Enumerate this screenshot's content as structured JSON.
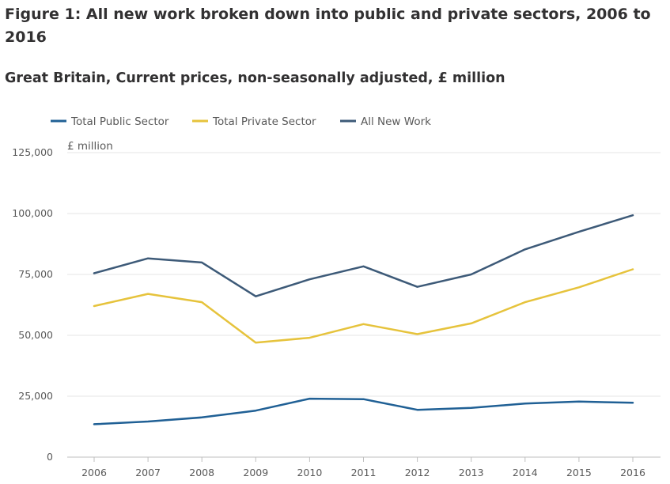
{
  "chart_data": {
    "type": "line",
    "title": "Figure 1: All new work broken down into public and private sectors, 2006 to 2016",
    "subtitle": "Great Britain, Current prices, non-seasonally adjusted, £ million",
    "ylabel": "£ million",
    "xlabel": "",
    "categories": [
      "2006",
      "2007",
      "2008",
      "2009",
      "2010",
      "2011",
      "2012",
      "2013",
      "2014",
      "2015",
      "2016"
    ],
    "ylim": [
      0,
      125000
    ],
    "yticks": [
      0,
      25000,
      50000,
      75000,
      100000,
      125000
    ],
    "ytick_labels": [
      "0",
      "25,000",
      "50,000",
      "75,000",
      "100,000",
      "125,000"
    ],
    "grid": true,
    "legend_position": "top-left",
    "series": [
      {
        "name": "Total Public Sector",
        "color": "#206095",
        "values": [
          13500,
          14600,
          16300,
          19100,
          24000,
          23800,
          19400,
          20200,
          22000,
          22800,
          22300
        ]
      },
      {
        "name": "Total Private Sector",
        "color": "#e6c33c",
        "values": [
          62000,
          67000,
          63600,
          47000,
          49000,
          54600,
          50500,
          54900,
          63600,
          69700,
          77100
        ]
      },
      {
        "name": "All New Work",
        "color": "#3d5a78",
        "values": [
          75500,
          81600,
          79900,
          66000,
          73000,
          78300,
          69900,
          75000,
          85300,
          92500,
          99300
        ]
      }
    ]
  }
}
